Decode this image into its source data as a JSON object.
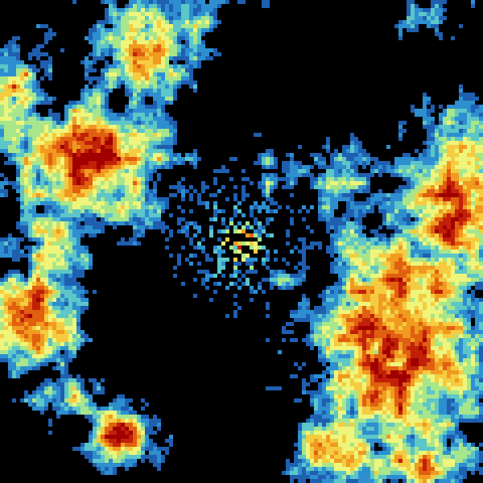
{
  "image": {
    "kind": "weather-radar-reflectivity",
    "background_color": "#000000",
    "colormap": [
      "#1f5fb0",
      "#2d8fd0",
      "#5cc6c8",
      "#a8e68c",
      "#eef57a",
      "#f5cc40",
      "#f09a20",
      "#e06010",
      "#c22008",
      "#a00000"
    ]
  }
}
